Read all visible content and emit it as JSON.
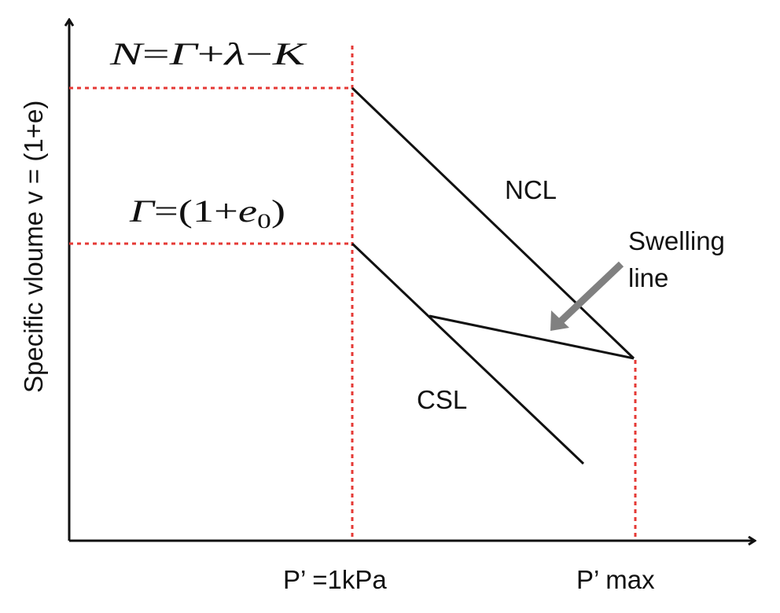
{
  "diagram": {
    "y_axis_label": "Specific vloume v = (1+e)",
    "x_tick_1": "P’ =1kPa",
    "x_tick_2": "P’ max",
    "n_label": {
      "lhs": "N",
      "eq": "=",
      "gamma": "Γ",
      "plus": "+",
      "lambda": "λ",
      "minus": "−",
      "k": "K"
    },
    "gamma_label": {
      "gamma": "Γ",
      "eq": "=",
      "open": "(1",
      "plus": "+",
      "e": "e",
      "sub": "0",
      "close": ")"
    },
    "ncl_label": "NCL",
    "csl_label": "CSL",
    "swelling_label_line1": "Swelling",
    "swelling_label_line2": "line",
    "colors": {
      "axis": "#111111",
      "lines": "#111111",
      "guide": "#e53935",
      "arrow": "#808080"
    }
  }
}
